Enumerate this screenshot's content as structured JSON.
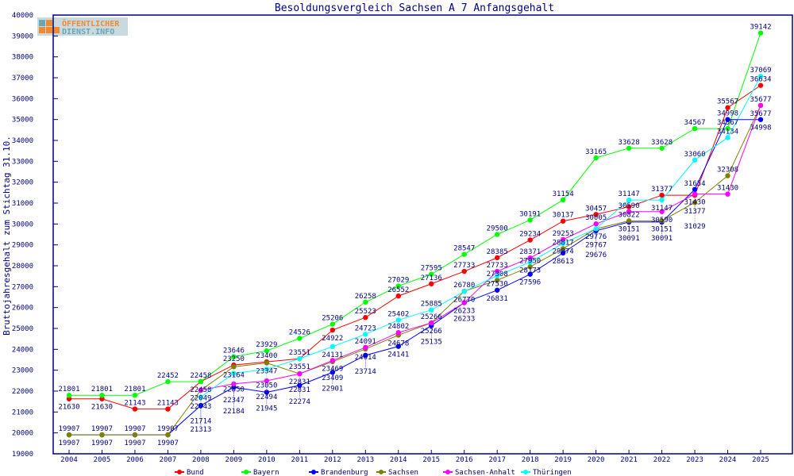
{
  "chart_data": {
    "type": "line",
    "title": "Besoldungsvergleich Sachsen A 7 Anfangsgehalt",
    "ylabel": "Bruttojahresgehalt zum Stichtag 31.10.",
    "xlabel": "",
    "ylim": [
      19000,
      40000
    ],
    "ytick_step": 1000,
    "grid": false,
    "legend_placement": "bottom",
    "x": [
      2004,
      2005,
      2006,
      2007,
      2008,
      2009,
      2010,
      2011,
      2012,
      2013,
      2014,
      2015,
      2016,
      2017,
      2018,
      2019,
      2020,
      2021,
      2022,
      2023,
      2024,
      2025
    ],
    "series": [
      {
        "name": "Bund",
        "color": "#ff0000",
        "values": [
          21630,
          21630,
          21143,
          21143,
          22458,
          23250,
          23400,
          23551,
          24922,
          25523,
          26552,
          27136,
          27733,
          28385,
          29234,
          30137,
          30457,
          30822,
          31377,
          31377,
          35567,
          36634
        ]
      },
      {
        "name": "Bayern",
        "color": "#00ff00",
        "values": [
          21801,
          21801,
          21801,
          22452,
          22458,
          23646,
          23929,
          24526,
          25206,
          26258,
          27029,
          27595,
          28547,
          29500,
          30191,
          31154,
          33165,
          33628,
          33628,
          34567,
          34567,
          39142
        ]
      },
      {
        "name": "Brandenburg",
        "color": "#0000ff",
        "values": [
          19907,
          19907,
          19907,
          19907,
          21313,
          22184,
          21945,
          22274,
          22901,
          23714,
          24141,
          25135,
          26233,
          26831,
          27596,
          28613,
          29676,
          30091,
          30091,
          31654,
          34998,
          34998
        ]
      },
      {
        "name": "Sachsen",
        "color": "#808000",
        "values": [
          19907,
          19907,
          19907,
          19907,
          22043,
          23164,
          23347,
          22831,
          23409,
          24014,
          24678,
          25266,
          26780,
          27308,
          27950,
          28817,
          29767,
          30151,
          30151,
          31029,
          32308,
          35677
        ]
      },
      {
        "name": "Sachsen-Anhalt",
        "color": "#ff00ff",
        "values": [
          null,
          null,
          null,
          null,
          22049,
          22347,
          22494,
          22831,
          23469,
          24091,
          24802,
          25266,
          26233,
          27733,
          28371,
          29253,
          30005,
          30590,
          30590,
          31430,
          31430,
          35677
        ]
      },
      {
        "name": "Thüringen",
        "color": "#00ffff",
        "values": [
          null,
          null,
          null,
          null,
          21714,
          22850,
          23050,
          23551,
          24131,
          24723,
          25402,
          25885,
          26770,
          27530,
          28173,
          29074,
          29776,
          31147,
          31147,
          33060,
          34134,
          37069
        ]
      }
    ]
  },
  "logo": {
    "text": "ÖFFENTLICHER DIENST.INFO"
  }
}
